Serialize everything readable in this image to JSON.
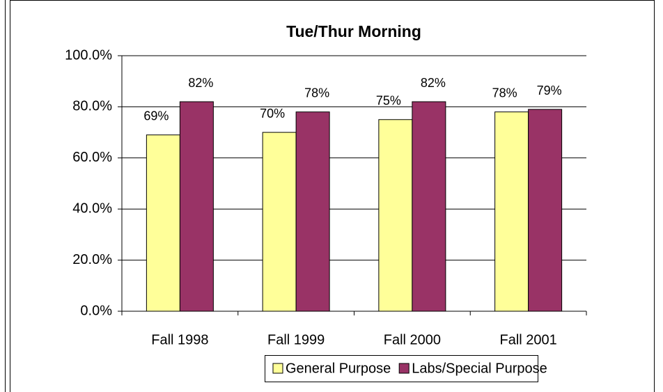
{
  "chart_data": {
    "type": "bar",
    "title": "Tue/Thur Morning",
    "categories": [
      "Fall 1998",
      "Fall 1999",
      "Fall 2000",
      "Fall 2001"
    ],
    "series": [
      {
        "name": "General Purpose",
        "color": "#ffff99",
        "values": [
          69,
          70,
          75,
          78
        ],
        "value_labels": [
          "69%",
          "70%",
          "75%",
          "78%"
        ]
      },
      {
        "name": "Labs/Special Purpose",
        "color": "#993366",
        "values": [
          82,
          78,
          82,
          79
        ],
        "value_labels": [
          "82%",
          "78%",
          "82%",
          "79%"
        ]
      }
    ],
    "ylim": [
      0,
      100
    ],
    "yticks": [
      {
        "value": 0,
        "label": "0.0%"
      },
      {
        "value": 20,
        "label": "20.0%"
      },
      {
        "value": 40,
        "label": "40.0%"
      },
      {
        "value": 60,
        "label": "60.0%"
      },
      {
        "value": 80,
        "label": "80.0%"
      },
      {
        "value": 100,
        "label": "100.0%"
      }
    ],
    "grid": true,
    "legend": "bottom"
  }
}
